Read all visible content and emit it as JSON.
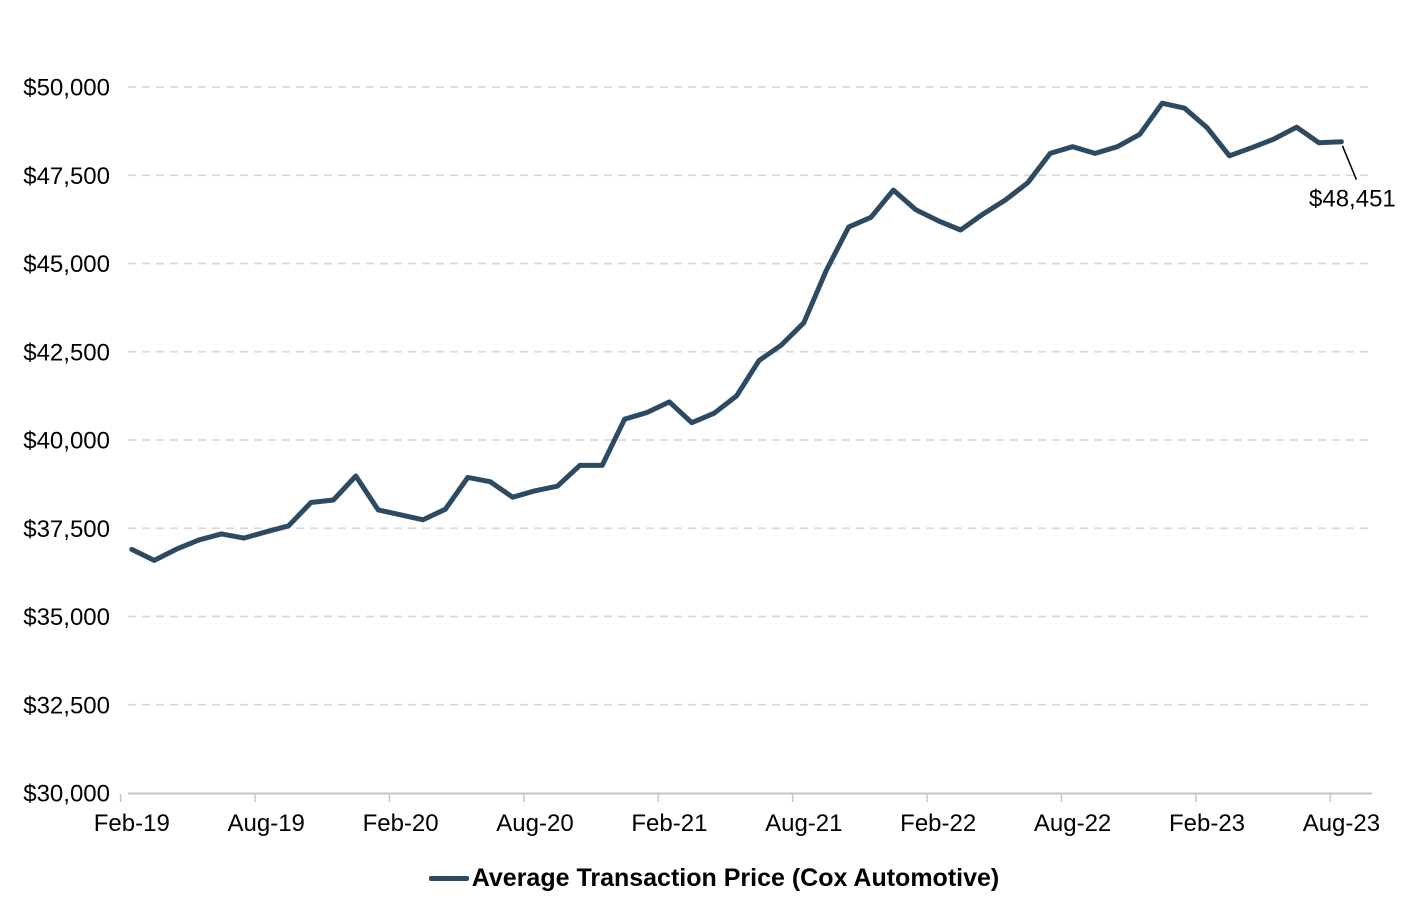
{
  "chart_data": {
    "type": "line",
    "title": "",
    "xlabel": "",
    "ylabel": "",
    "x": [
      "Feb-19",
      "Mar-19",
      "Apr-19",
      "May-19",
      "Jun-19",
      "Jul-19",
      "Aug-19",
      "Sep-19",
      "Oct-19",
      "Nov-19",
      "Dec-19",
      "Jan-20",
      "Feb-20",
      "Mar-20",
      "Apr-20",
      "May-20",
      "Jun-20",
      "Jul-20",
      "Aug-20",
      "Sep-20",
      "Oct-20",
      "Nov-20",
      "Dec-20",
      "Jan-21",
      "Feb-21",
      "Mar-21",
      "Apr-21",
      "May-21",
      "Jun-21",
      "Jul-21",
      "Aug-21",
      "Sep-21",
      "Oct-21",
      "Nov-21",
      "Dec-21",
      "Jan-22",
      "Feb-22",
      "Mar-22",
      "Apr-22",
      "May-22",
      "Jun-22",
      "Jul-22",
      "Aug-22",
      "Sep-22",
      "Oct-22",
      "Nov-22",
      "Dec-22",
      "Jan-23",
      "Feb-23",
      "Mar-23",
      "Apr-23",
      "May-23",
      "Jun-23",
      "Jul-23",
      "Aug-23"
    ],
    "series": [
      {
        "name": "Average Transaction Price (Cox Automotive)",
        "color": "#2d4a63",
        "values": [
          36900,
          36590,
          36910,
          37170,
          37340,
          37220,
          37400,
          37570,
          38230,
          38300,
          38980,
          38020,
          37880,
          37740,
          38040,
          38940,
          38820,
          38380,
          38560,
          38690,
          39280,
          39280,
          40590,
          40780,
          41080,
          40490,
          40760,
          41250,
          42250,
          42690,
          43320,
          44800,
          46030,
          46310,
          47080,
          46520,
          46210,
          45950,
          46400,
          46800,
          47290,
          48120,
          48310,
          48120,
          48310,
          48660,
          49540,
          49400,
          48850,
          48050,
          48280,
          48530,
          48860,
          48420,
          48451
        ]
      }
    ],
    "x_tick_labels": [
      "Feb-19",
      "Aug-19",
      "Feb-20",
      "Aug-20",
      "Feb-21",
      "Aug-21",
      "Feb-22",
      "Aug-22",
      "Feb-23",
      "Aug-23"
    ],
    "x_tick_every": 6,
    "y_tick_labels": [
      "$30,000",
      "$32,500",
      "$35,000",
      "$37,500",
      "$40,000",
      "$42,500",
      "$45,000",
      "$47,500",
      "$50,000"
    ],
    "ylim": [
      30000,
      50000
    ],
    "y_step": 2500,
    "grid": "horizontal-dashed",
    "legend_position": "bottom-center",
    "annotation": {
      "text": "$48,451",
      "month": "Aug-23",
      "value": 48451
    }
  },
  "legend": {
    "label": "Average Transaction Price (Cox Automotive)"
  },
  "colors": {
    "line": "#2d4a63",
    "grid": "#d9d9d9",
    "axis": "#c6c6c6",
    "text": "#000000",
    "background": "#ffffff"
  }
}
